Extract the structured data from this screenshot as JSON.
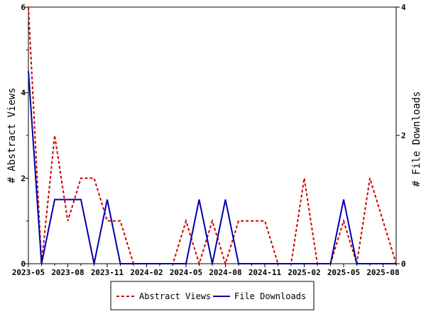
{
  "chart_data": {
    "type": "line",
    "x": [
      "2023-05",
      "2023-06",
      "2023-07",
      "2023-08",
      "2023-09",
      "2023-10",
      "2023-11",
      "2023-12",
      "2024-01",
      "2024-02",
      "2024-03",
      "2024-04",
      "2024-05",
      "2024-06",
      "2024-07",
      "2024-08",
      "2024-09",
      "2024-10",
      "2024-11",
      "2024-12",
      "2025-01",
      "2025-02",
      "2025-03",
      "2025-04",
      "2025-05",
      "2025-06",
      "2025-07",
      "2025-08",
      "2025-09"
    ],
    "x_ticks": [
      "2023-05",
      "2023-08",
      "2023-11",
      "2024-02",
      "2024-05",
      "2024-08",
      "2024-11",
      "2025-02",
      "2025-05",
      "2025-08"
    ],
    "series": [
      {
        "name": "Abstract Views",
        "axis": "left",
        "color": "#cc0000",
        "style": "dashed",
        "values": [
          6,
          0,
          3,
          1,
          2,
          2,
          1,
          1,
          0,
          0,
          0,
          0,
          1,
          0,
          1,
          0,
          1,
          1,
          1,
          0,
          0,
          2,
          0,
          0,
          1,
          0,
          2,
          1,
          0
        ]
      },
      {
        "name": "File Downloads",
        "axis": "right",
        "color": "#0000aa",
        "style": "solid",
        "values": [
          3,
          0,
          1,
          1,
          1,
          0,
          1,
          0,
          0,
          0,
          0,
          0,
          0,
          1,
          0,
          1,
          0,
          0,
          0,
          0,
          0,
          0,
          0,
          0,
          1,
          0,
          0,
          0,
          0
        ]
      }
    ],
    "ylabel_left": "# Abstract Views",
    "ylabel_right": "# File Downloads",
    "ylim_left": [
      0,
      6
    ],
    "ylim_right": [
      0,
      4
    ],
    "yticks_left": [
      0,
      2,
      4,
      6
    ],
    "yticks_right": [
      0,
      2,
      4
    ],
    "grid": false,
    "legend": "bottom"
  }
}
